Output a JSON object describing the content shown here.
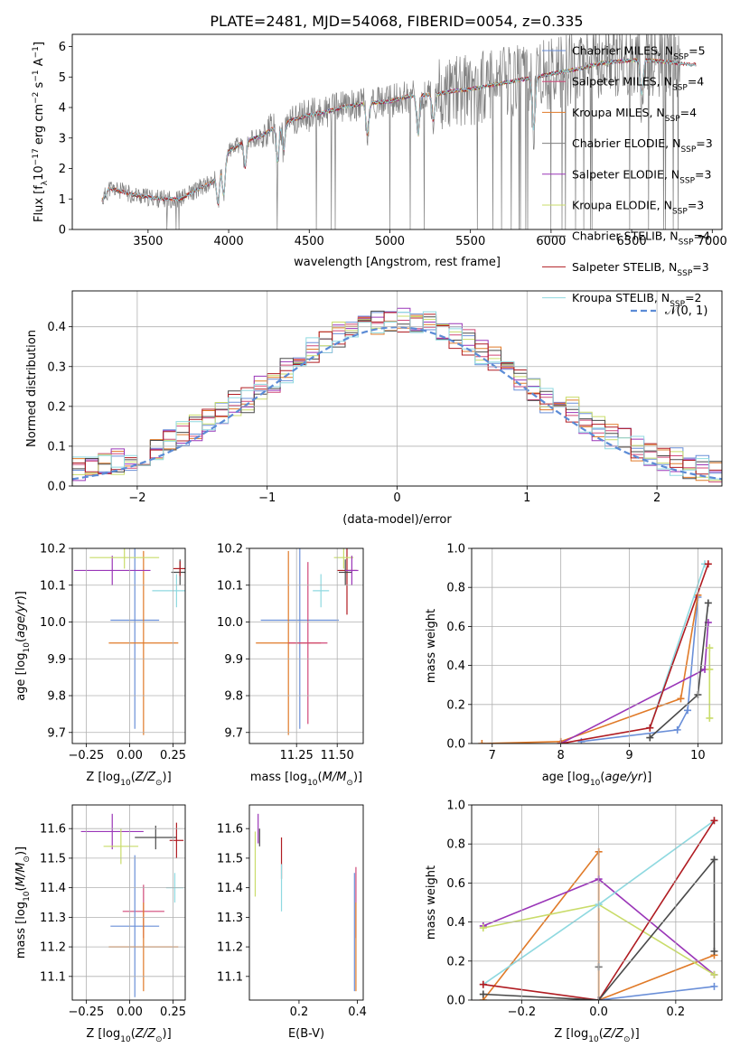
{
  "figure": {
    "title": "PLATE=2481, MJD=54068, FIBERID=0054, z=0.335"
  },
  "colors": {
    "chabrier_miles": "#6a8fd8",
    "salpeter_miles": "#d04878",
    "kroupa_miles": "#e07a28",
    "chabrier_elodie": "#7f7f7f",
    "salpeter_elodie": "#9a36b8",
    "kroupa_elodie": "#c9dc6a",
    "chabrier_stelib": "#4a4a4a",
    "salpeter_stelib": "#b01c22",
    "kroupa_stelib": "#8fd9e0",
    "gauss": "#5b8bd6",
    "grid": "#b0b0b0"
  },
  "chart_data": [
    {
      "id": "spectrum",
      "type": "line",
      "xlabel": "wavelength [Angstrom, rest frame]",
      "ylabel": "Flux [f",
      "ylabel_parts": [
        "Flux [f",
        "λ",
        "10",
        "−17",
        " erg cm",
        "−2",
        " s",
        "−1",
        " A",
        "−1",
        "]"
      ],
      "xlim": [
        3030,
        7060
      ],
      "ylim": [
        0,
        6.4
      ],
      "xticks": [
        "3500",
        "4000",
        "4500",
        "5000",
        "5500",
        "6000",
        "6500",
        "7000"
      ],
      "yticks": [
        "0",
        "1",
        "2",
        "3",
        "4",
        "5",
        "6"
      ],
      "grid": false,
      "legend_position": "top-right",
      "continuum_x": [
        3210,
        3260,
        3300,
        3400,
        3500,
        3600,
        3700,
        3800,
        3900,
        3950,
        4000,
        4100,
        4200,
        4300,
        4400,
        4500,
        4600,
        4700,
        4800,
        4900,
        5000,
        5100,
        5200,
        5300,
        5400,
        5500,
        5600,
        5700,
        5800,
        5900,
        6000,
        6100,
        6200,
        6300,
        6400,
        6500,
        6600,
        6700,
        6800,
        6900
      ],
      "continuum_y": [
        0.9,
        1.35,
        1.3,
        1.15,
        1.05,
        1.0,
        1.0,
        1.3,
        1.55,
        2.0,
        2.55,
        2.9,
        3.05,
        3.4,
        3.6,
        3.75,
        3.85,
        4.0,
        4.1,
        4.15,
        4.2,
        4.35,
        4.4,
        4.45,
        4.55,
        4.6,
        4.7,
        4.8,
        4.9,
        5.0,
        5.1,
        5.2,
        5.3,
        5.45,
        5.5,
        5.55,
        5.55,
        5.5,
        5.45,
        5.4
      ],
      "legend": [
        {
          "color_key": "chabrier_miles",
          "label": "Chabrier MILES, N",
          "sub": "SSP",
          "suffix": "=5"
        },
        {
          "color_key": "salpeter_miles",
          "label": "Salpeter MILES, N",
          "sub": "SSP",
          "suffix": "=4"
        },
        {
          "color_key": "kroupa_miles",
          "label": "Kroupa MILES, N",
          "sub": "SSP",
          "suffix": "=4"
        },
        {
          "color_key": "chabrier_elodie",
          "label": "Chabrier ELODIE, N",
          "sub": "SSP",
          "suffix": "=3"
        },
        {
          "color_key": "salpeter_elodie",
          "label": "Salpeter ELODIE, N",
          "sub": "SSP",
          "suffix": "=3"
        },
        {
          "color_key": "kroupa_elodie",
          "label": "Kroupa ELODIE, N",
          "sub": "SSP",
          "suffix": "=3"
        },
        {
          "color_key": "chabrier_stelib",
          "label": "Chabrier STELIB, N",
          "sub": "SSP",
          "suffix": "=4"
        },
        {
          "color_key": "salpeter_stelib",
          "label": "Salpeter STELIB, N",
          "sub": "SSP",
          "suffix": "=3"
        },
        {
          "color_key": "kroupa_stelib",
          "label": "Kroupa STELIB, N",
          "sub": "SSP",
          "suffix": "=2"
        }
      ]
    },
    {
      "id": "residuals",
      "type": "line",
      "xlabel": "(data-model)/error",
      "ylabel": "Normed distribution",
      "xlim": [
        -2.5,
        2.5
      ],
      "ylim": [
        0,
        0.49
      ],
      "xticks": [
        "−2",
        "−1",
        "0",
        "1",
        "2"
      ],
      "xtick_values": [
        -2,
        -1,
        0,
        1,
        2
      ],
      "yticks": [
        "0.0",
        "0.1",
        "0.2",
        "0.3",
        "0.4"
      ],
      "ytick_values": [
        0,
        0.1,
        0.2,
        0.3,
        0.4
      ],
      "grid": true,
      "legend_position": "top-right",
      "legend_label": "𝒩(0, 1)",
      "bin_width": 0.1
    },
    {
      "id": "age_vs_Z",
      "type": "scatter",
      "xlabel": "Z [log10(Z/Z⊙)]",
      "ylabel": "age  [log10(age/yr)]",
      "xlim": [
        -0.33,
        0.32
      ],
      "ylim": [
        9.67,
        10.2
      ],
      "xticks": [
        "−0.25",
        "0.00",
        "0.25"
      ],
      "xtick_values": [
        -0.25,
        0.0,
        0.25
      ],
      "yticks": [
        "9.7",
        "9.8",
        "9.9",
        "10.0",
        "10.1",
        "10.2"
      ],
      "ytick_values": [
        9.7,
        9.8,
        9.9,
        10.0,
        10.1,
        10.2
      ],
      "grid": true,
      "points": [
        {
          "color_key": "chabrier_miles",
          "x": 0.03,
          "xerr": 0.14,
          "y": 10.005,
          "yerr": 0.295
        },
        {
          "color_key": "kroupa_miles",
          "x": 0.08,
          "xerr": 0.2,
          "y": 9.943,
          "yerr": 0.25
        },
        {
          "color_key": "kroupa_stelib",
          "x": 0.27,
          "xerr": 0.14,
          "y": 10.085,
          "yerr": 0.045
        },
        {
          "color_key": "salpeter_elodie",
          "x": -0.1,
          "xerr": 0.22,
          "y": 10.14,
          "yerr": 0.04
        },
        {
          "color_key": "kroupa_elodie",
          "x": -0.03,
          "xerr": 0.2,
          "y": 10.175,
          "yerr": 0.03
        },
        {
          "color_key": "chabrier_stelib",
          "x": 0.29,
          "xerr": 0.05,
          "y": 10.135,
          "yerr": 0.035
        },
        {
          "color_key": "salpeter_stelib",
          "x": 0.29,
          "xerr": 0.04,
          "y": 10.145,
          "yerr": 0.02
        }
      ]
    },
    {
      "id": "age_vs_mass",
      "type": "scatter",
      "xlabel": "mass [log10(M/M⊙)]",
      "ylabel": "",
      "xlim": [
        10.96,
        11.66
      ],
      "ylim": [
        9.67,
        10.2
      ],
      "xticks": [
        "11.25",
        "11.50"
      ],
      "xtick_values": [
        11.25,
        11.5
      ],
      "yticks": [
        "9.7",
        "9.8",
        "9.9",
        "10.0",
        "10.1",
        "10.2"
      ],
      "ytick_values": [
        9.7,
        9.8,
        9.9,
        10.0,
        10.1,
        10.2
      ],
      "grid": true,
      "points": [
        {
          "color_key": "chabrier_miles",
          "x": 11.27,
          "xerr": 0.24,
          "y": 10.005,
          "yerr": 0.295
        },
        {
          "color_key": "kroupa_miles",
          "x": 11.2,
          "xerr": 0.2,
          "y": 9.943,
          "yerr": 0.25
        },
        {
          "color_key": "salpeter_miles",
          "x": 11.32,
          "xerr": 0.12,
          "y": 9.943,
          "yerr": 0.22
        },
        {
          "color_key": "kroupa_stelib",
          "x": 11.4,
          "xerr": 0.05,
          "y": 10.085,
          "yerr": 0.045
        },
        {
          "color_key": "salpeter_stelib",
          "x": 11.56,
          "xerr": 0.06,
          "y": 10.14,
          "yerr": 0.12
        },
        {
          "color_key": "chabrier_stelib",
          "x": 11.55,
          "xerr": 0.04,
          "y": 10.135,
          "yerr": 0.035
        },
        {
          "color_key": "kroupa_elodie",
          "x": 11.54,
          "xerr": 0.06,
          "y": 10.175,
          "yerr": 0.03
        },
        {
          "color_key": "salpeter_elodie",
          "x": 11.59,
          "xerr": 0.04,
          "y": 10.14,
          "yerr": 0.04
        }
      ]
    },
    {
      "id": "weight_vs_age",
      "type": "line",
      "xlabel": "age  [log10(age/yr)]",
      "ylabel": "mass weight",
      "xlim": [
        6.7,
        10.35
      ],
      "ylim": [
        0,
        1
      ],
      "xticks": [
        "7",
        "8",
        "9",
        "10"
      ],
      "xtick_values": [
        7,
        8,
        9,
        10
      ],
      "yticks": [
        "0.0",
        "0.2",
        "0.4",
        "0.6",
        "0.8",
        "1.0"
      ],
      "ytick_values": [
        0,
        0.2,
        0.4,
        0.6,
        0.8,
        1.0
      ],
      "grid": true,
      "series": [
        {
          "color_key": "chabrier_miles",
          "x": [
            8.3,
            9.7,
            9.85,
            10.0
          ],
          "y": [
            0.01,
            0.07,
            0.17,
            0.75
          ]
        },
        {
          "color_key": "kroupa_miles",
          "x": [
            6.85,
            8.0,
            9.75,
            10.0
          ],
          "y": [
            0.0,
            0.01,
            0.23,
            0.76
          ]
        },
        {
          "color_key": "salpeter_elodie",
          "x": [
            8.0,
            10.1,
            10.15
          ],
          "y": [
            0.0,
            0.38,
            0.62
          ]
        },
        {
          "color_key": "kroupa_stelib",
          "x": [
            9.3,
            10.1
          ],
          "y": [
            0.08,
            0.92
          ]
        },
        {
          "color_key": "salpeter_stelib",
          "x": [
            8.0,
            9.3,
            10.15
          ],
          "y": [
            0.0,
            0.08,
            0.92
          ]
        },
        {
          "color_key": "chabrier_stelib",
          "x": [
            9.3,
            10.0,
            10.15
          ],
          "y": [
            0.03,
            0.25,
            0.72
          ]
        },
        {
          "color_key": "kroupa_elodie",
          "x": [
            10.17,
            10.17,
            10.17
          ],
          "y": [
            0.13,
            0.38,
            0.49
          ]
        }
      ]
    },
    {
      "id": "mass_vs_Z",
      "type": "scatter",
      "xlabel": "Z [log10(Z/Z⊙)]",
      "ylabel": "mass [log10(M/M⊙)]",
      "xlim": [
        -0.33,
        0.32
      ],
      "ylim": [
        11.02,
        11.68
      ],
      "xticks": [
        "−0.25",
        "0.00",
        "0.25"
      ],
      "xtick_values": [
        -0.25,
        0.0,
        0.25
      ],
      "yticks": [
        "11.1",
        "11.2",
        "11.3",
        "11.4",
        "11.5",
        "11.6"
      ],
      "ytick_values": [
        11.1,
        11.2,
        11.3,
        11.4,
        11.5,
        11.6
      ],
      "grid": true,
      "points": [
        {
          "color_key": "salpeter_elodie",
          "x": -0.1,
          "xerr": 0.18,
          "y": 11.59,
          "yerr": 0.06
        },
        {
          "color_key": "kroupa_elodie",
          "x": -0.05,
          "xerr": 0.1,
          "y": 11.54,
          "yerr": 0.06
        },
        {
          "color_key": "chabrier_stelib",
          "x": 0.15,
          "xerr": 0.12,
          "y": 11.57,
          "yerr": 0.04
        },
        {
          "color_key": "salpeter_stelib",
          "x": 0.27,
          "xerr": 0.04,
          "y": 11.56,
          "yerr": 0.06
        },
        {
          "color_key": "kroupa_stelib",
          "x": 0.26,
          "xerr": 0.05,
          "y": 11.4,
          "yerr": 0.05
        },
        {
          "color_key": "salpeter_miles",
          "x": 0.08,
          "xerr": 0.12,
          "y": 11.32,
          "yerr": 0.09
        },
        {
          "color_key": "chabrier_miles",
          "x": 0.03,
          "xerr": 0.14,
          "y": 11.27,
          "yerr": 0.24
        },
        {
          "color_key": "kroupa_miles",
          "x": 0.08,
          "xerr": 0.2,
          "y": 11.2,
          "yerr": 0.15
        }
      ]
    },
    {
      "id": "mass_vs_EBV",
      "type": "scatter",
      "xlabel": "E(B-V)",
      "ylabel": "",
      "xlim": [
        0.03,
        0.42
      ],
      "ylim": [
        11.02,
        11.68
      ],
      "xticks": [
        "0.2",
        "0.4"
      ],
      "xtick_values": [
        0.2,
        0.4
      ],
      "yticks": [
        "11.1",
        "11.2",
        "11.3",
        "11.4",
        "11.5",
        "11.6"
      ],
      "ytick_values": [
        11.1,
        11.2,
        11.3,
        11.4,
        11.5,
        11.6
      ],
      "grid": false,
      "points": [
        {
          "color_key": "kroupa_elodie",
          "x": 0.05,
          "xerr": 0.0,
          "y": 11.48,
          "yerr": 0.11
        },
        {
          "color_key": "salpeter_elodie",
          "x": 0.06,
          "xerr": 0.0,
          "y": 11.6,
          "yerr": 0.05
        },
        {
          "color_key": "chabrier_stelib",
          "x": 0.065,
          "xerr": 0.0,
          "y": 11.57,
          "yerr": 0.03
        },
        {
          "color_key": "salpeter_stelib",
          "x": 0.14,
          "xerr": 0.0,
          "y": 11.5,
          "yerr": 0.07
        },
        {
          "color_key": "kroupa_stelib",
          "x": 0.14,
          "xerr": 0.0,
          "y": 11.4,
          "yerr": 0.08
        },
        {
          "color_key": "salpeter_miles",
          "x": 0.395,
          "xerr": 0.0,
          "y": 11.35,
          "yerr": 0.12
        },
        {
          "color_key": "chabrier_miles",
          "x": 0.39,
          "xerr": 0.0,
          "y": 11.25,
          "yerr": 0.2
        },
        {
          "color_key": "kroupa_miles",
          "x": 0.395,
          "xerr": 0.0,
          "y": 11.2,
          "yerr": 0.15
        }
      ]
    },
    {
      "id": "weight_vs_Z",
      "type": "line",
      "xlabel": "Z [log10(Z/Z⊙)]",
      "ylabel": "mass weight",
      "xlim": [
        -0.33,
        0.32
      ],
      "ylim": [
        0,
        1
      ],
      "xticks": [
        "−0.2",
        "0.0",
        "0.2"
      ],
      "xtick_values": [
        -0.2,
        0.0,
        0.2
      ],
      "yticks": [
        "0.0",
        "0.2",
        "0.4",
        "0.6",
        "0.8",
        "1.0"
      ],
      "ytick_values": [
        0,
        0.2,
        0.4,
        0.6,
        0.8,
        1.0
      ],
      "grid": true,
      "series": [
        {
          "color_key": "kroupa_miles",
          "x": [
            -0.3,
            0.0,
            0.0,
            0.3
          ],
          "y": [
            0.0,
            0.76,
            0.0,
            0.23
          ]
        },
        {
          "color_key": "chabrier_miles",
          "x": [
            0.0,
            0.3
          ],
          "y": [
            0.0,
            0.07
          ]
        },
        {
          "color_key": "salpeter_elodie",
          "x": [
            -0.3,
            0.0,
            0.3
          ],
          "y": [
            0.38,
            0.62,
            0.13
          ]
        },
        {
          "color_key": "kroupa_elodie",
          "x": [
            -0.3,
            0.0,
            0.3
          ],
          "y": [
            0.37,
            0.49,
            0.13
          ]
        },
        {
          "color_key": "kroupa_stelib",
          "x": [
            -0.3,
            0.0,
            0.3
          ],
          "y": [
            0.08,
            0.49,
            0.92
          ]
        },
        {
          "color_key": "salpeter_stelib",
          "x": [
            -0.3,
            0.0,
            0.3
          ],
          "y": [
            0.08,
            0.0,
            0.92
          ]
        },
        {
          "color_key": "chabrier_stelib",
          "x": [
            -0.3,
            0.0,
            0.3,
            0.3
          ],
          "y": [
            0.03,
            0.0,
            0.72,
            0.25
          ]
        },
        {
          "color_key": "chabrier_elodie",
          "x": [
            0.0,
            0.0
          ],
          "y": [
            0.17,
            0.17
          ]
        }
      ]
    }
  ]
}
